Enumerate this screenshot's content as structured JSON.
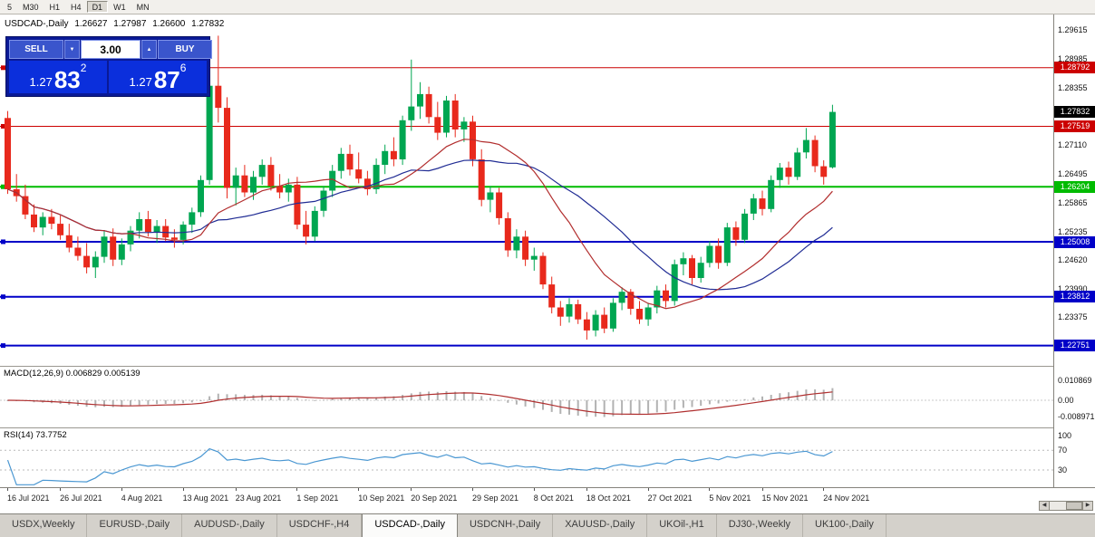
{
  "colors": {
    "bull": "#00a651",
    "bear": "#e8291c",
    "ma_fast": "#b22e2e",
    "ma_slow": "#202c94",
    "level_red": "#cc0000",
    "level_green": "#00bb00",
    "level_blue": "#0000c8",
    "current_badge": "#000000",
    "macd_hist": "#b2b2b2",
    "macd_signal": "#b03030",
    "rsi_line": "#4a97d2",
    "rsi_level": "#b8b8b8"
  },
  "icons": {
    "chevron_down": "▼",
    "chevron_up": "▲",
    "arrow_left": "◀",
    "arrow_right": "▶"
  },
  "toolbar": {
    "timeframes": [
      {
        "label": "5",
        "active": false
      },
      {
        "label": "M30",
        "active": false
      },
      {
        "label": "H1",
        "active": false
      },
      {
        "label": "H4",
        "active": false
      },
      {
        "label": "D1",
        "active": true
      },
      {
        "label": "W1",
        "active": false
      },
      {
        "label": "MN",
        "active": false
      }
    ]
  },
  "trade_panel": {
    "sell_label": "SELL",
    "buy_label": "BUY",
    "volume": "3.00",
    "sell_price": {
      "prefix": "1.27",
      "big": "83",
      "sup": "2"
    },
    "buy_price": {
      "prefix": "1.27",
      "big": "87",
      "sup": "6"
    }
  },
  "chart": {
    "title": "USDCAD-,Daily",
    "ohlc": {
      "open": "1.26627",
      "high": "1.27987",
      "low": "1.26600",
      "close": "1.27832"
    },
    "price_scale": {
      "max": 1.2995,
      "min": 1.2231,
      "ticks": [
        "1.29615",
        "1.28985",
        "1.28355",
        "1.27110",
        "1.26495",
        "1.25865",
        "1.25235",
        "1.24620",
        "1.23990",
        "1.23375"
      ]
    },
    "current_price": {
      "label": "1.27832",
      "value": 1.27832
    },
    "levels": [
      {
        "label": "1.28792",
        "value": 1.28792,
        "color_key": "level_red",
        "width": 1
      },
      {
        "label": "1.27519",
        "value": 1.27519,
        "color_key": "level_red",
        "width": 1
      },
      {
        "label": "1.26204",
        "value": 1.26204,
        "color_key": "level_green",
        "width": 2
      },
      {
        "label": "1.25008",
        "value": 1.25008,
        "color_key": "level_blue",
        "width": 2
      },
      {
        "label": "1.23812",
        "value": 1.23812,
        "color_key": "level_blue",
        "width": 2
      },
      {
        "label": "1.22751",
        "value": 1.22751,
        "color_key": "level_blue",
        "width": 2
      }
    ],
    "ma": {
      "fast_period": 15,
      "slow_period": 24
    },
    "time_ticks": [
      {
        "label": "16 Jul 2021",
        "i": 0
      },
      {
        "label": "26 Jul 2021",
        "i": 6
      },
      {
        "label": "4 Aug 2021",
        "i": 13
      },
      {
        "label": "13 Aug 2021",
        "i": 20
      },
      {
        "label": "23 Aug 2021",
        "i": 26
      },
      {
        "label": "1 Sep 2021",
        "i": 33
      },
      {
        "label": "10 Sep 2021",
        "i": 40
      },
      {
        "label": "20 Sep 2021",
        "i": 46
      },
      {
        "label": "29 Sep 2021",
        "i": 53
      },
      {
        "label": "8 Oct 2021",
        "i": 60
      },
      {
        "label": "18 Oct 2021",
        "i": 66
      },
      {
        "label": "27 Oct 2021",
        "i": 73
      },
      {
        "label": "5 Nov 2021",
        "i": 80
      },
      {
        "label": "15 Nov 2021",
        "i": 86
      },
      {
        "label": "24 Nov 2021",
        "i": 93
      }
    ],
    "candles": [
      [
        1.277,
        1.2785,
        1.2605,
        1.2615
      ],
      [
        1.2615,
        1.2648,
        1.2588,
        1.26
      ],
      [
        1.26,
        1.2625,
        1.255,
        1.256
      ],
      [
        1.256,
        1.2582,
        1.2522,
        1.2532
      ],
      [
        1.2532,
        1.2565,
        1.2515,
        1.2555
      ],
      [
        1.2555,
        1.2572,
        1.2528,
        1.254
      ],
      [
        1.254,
        1.2558,
        1.2505,
        1.2515
      ],
      [
        1.2515,
        1.254,
        1.2478,
        1.2488
      ],
      [
        1.2488,
        1.2512,
        1.246,
        1.247
      ],
      [
        1.247,
        1.2498,
        1.2432,
        1.2445
      ],
      [
        1.2445,
        1.248,
        1.2422,
        1.2468
      ],
      [
        1.2468,
        1.2525,
        1.2455,
        1.2512
      ],
      [
        1.2512,
        1.253,
        1.2448,
        1.2462
      ],
      [
        1.2462,
        1.2508,
        1.245,
        1.2495
      ],
      [
        1.2495,
        1.2535,
        1.248,
        1.2525
      ],
      [
        1.2525,
        1.2565,
        1.2508,
        1.255
      ],
      [
        1.255,
        1.2568,
        1.2512,
        1.2522
      ],
      [
        1.2522,
        1.2548,
        1.2498,
        1.2535
      ],
      [
        1.2535,
        1.255,
        1.2502,
        1.251
      ],
      [
        1.251,
        1.2528,
        1.2488,
        1.2505
      ],
      [
        1.2505,
        1.2545,
        1.2495,
        1.2538
      ],
      [
        1.2538,
        1.2575,
        1.252,
        1.2565
      ],
      [
        1.2565,
        1.2645,
        1.2555,
        1.2635
      ],
      [
        1.2635,
        1.2852,
        1.2625,
        1.284
      ],
      [
        1.284,
        1.2949,
        1.276,
        1.2792
      ],
      [
        1.2792,
        1.2815,
        1.2595,
        1.2618
      ],
      [
        1.2618,
        1.2662,
        1.258,
        1.2645
      ],
      [
        1.2645,
        1.2668,
        1.2598,
        1.2608
      ],
      [
        1.2608,
        1.2655,
        1.2592,
        1.2642
      ],
      [
        1.2642,
        1.268,
        1.2625,
        1.2668
      ],
      [
        1.2668,
        1.2685,
        1.2612,
        1.2622
      ],
      [
        1.2622,
        1.2648,
        1.2595,
        1.2608
      ],
      [
        1.2608,
        1.2638,
        1.2588,
        1.2625
      ],
      [
        1.2625,
        1.2642,
        1.2528,
        1.2538
      ],
      [
        1.2538,
        1.2568,
        1.2495,
        1.2512
      ],
      [
        1.2512,
        1.2578,
        1.2502,
        1.2568
      ],
      [
        1.2568,
        1.2622,
        1.2555,
        1.2612
      ],
      [
        1.2612,
        1.2668,
        1.2598,
        1.2655
      ],
      [
        1.2655,
        1.2705,
        1.2638,
        1.2692
      ],
      [
        1.2692,
        1.2712,
        1.2645,
        1.2658
      ],
      [
        1.2658,
        1.2695,
        1.2628,
        1.2638
      ],
      [
        1.2638,
        1.2655,
        1.2602,
        1.2615
      ],
      [
        1.2615,
        1.2682,
        1.2605,
        1.2668
      ],
      [
        1.2668,
        1.2712,
        1.2648,
        1.2698
      ],
      [
        1.2698,
        1.2728,
        1.2665,
        1.268
      ],
      [
        1.268,
        1.2775,
        1.2668,
        1.2765
      ],
      [
        1.2765,
        1.2897,
        1.2742,
        1.2795
      ],
      [
        1.2795,
        1.2848,
        1.2768,
        1.2822
      ],
      [
        1.2822,
        1.2838,
        1.2758,
        1.2772
      ],
      [
        1.2772,
        1.2805,
        1.2722,
        1.2738
      ],
      [
        1.2738,
        1.2818,
        1.2728,
        1.2808
      ],
      [
        1.2808,
        1.2822,
        1.2728,
        1.2745
      ],
      [
        1.2745,
        1.2772,
        1.2718,
        1.2762
      ],
      [
        1.2762,
        1.2775,
        1.2665,
        1.268
      ],
      [
        1.268,
        1.2702,
        1.2578,
        1.2592
      ],
      [
        1.2592,
        1.2622,
        1.2565,
        1.2608
      ],
      [
        1.2608,
        1.2618,
        1.2538,
        1.2552
      ],
      [
        1.2552,
        1.2565,
        1.2468,
        1.2482
      ],
      [
        1.2482,
        1.2528,
        1.2465,
        1.2512
      ],
      [
        1.2512,
        1.2525,
        1.2448,
        1.2462
      ],
      [
        1.2462,
        1.2488,
        1.2438,
        1.247
      ],
      [
        1.247,
        1.2478,
        1.2398,
        1.2408
      ],
      [
        1.2408,
        1.2425,
        1.2345,
        1.2358
      ],
      [
        1.2358,
        1.2372,
        1.2318,
        1.2338
      ],
      [
        1.2338,
        1.2378,
        1.2325,
        1.2365
      ],
      [
        1.2365,
        1.2375,
        1.2322,
        1.2332
      ],
      [
        1.2332,
        1.2348,
        1.2288,
        1.2308
      ],
      [
        1.2308,
        1.2352,
        1.2295,
        1.2342
      ],
      [
        1.2342,
        1.2358,
        1.2302,
        1.2312
      ],
      [
        1.2312,
        1.2378,
        1.2305,
        1.2368
      ],
      [
        1.2368,
        1.2402,
        1.2352,
        1.2392
      ],
      [
        1.2392,
        1.2398,
        1.2342,
        1.2355
      ],
      [
        1.2355,
        1.2372,
        1.2322,
        1.2332
      ],
      [
        1.2332,
        1.2368,
        1.2318,
        1.2358
      ],
      [
        1.2358,
        1.2405,
        1.2345,
        1.2395
      ],
      [
        1.2395,
        1.2408,
        1.2358,
        1.2372
      ],
      [
        1.2372,
        1.2462,
        1.2362,
        1.2452
      ],
      [
        1.2452,
        1.2478,
        1.2428,
        1.2465
      ],
      [
        1.2465,
        1.2472,
        1.2408,
        1.2422
      ],
      [
        1.2422,
        1.2468,
        1.2412,
        1.2455
      ],
      [
        1.2455,
        1.2502,
        1.2445,
        1.2492
      ],
      [
        1.2492,
        1.2508,
        1.2442,
        1.2455
      ],
      [
        1.2455,
        1.2542,
        1.2448,
        1.2532
      ],
      [
        1.2532,
        1.2545,
        1.2492,
        1.2505
      ],
      [
        1.2505,
        1.2572,
        1.2498,
        1.2562
      ],
      [
        1.2562,
        1.2605,
        1.2548,
        1.2595
      ],
      [
        1.2595,
        1.2612,
        1.2558,
        1.2572
      ],
      [
        1.2572,
        1.2645,
        1.2565,
        1.2635
      ],
      [
        1.2635,
        1.2672,
        1.2618,
        1.2662
      ],
      [
        1.2662,
        1.2675,
        1.2625,
        1.2642
      ],
      [
        1.2642,
        1.2705,
        1.2635,
        1.2695
      ],
      [
        1.2695,
        1.2748,
        1.2682,
        1.2722
      ],
      [
        1.2722,
        1.2732,
        1.2652,
        1.2665
      ],
      [
        1.2665,
        1.2678,
        1.2625,
        1.2642
      ],
      [
        1.26627,
        1.27987,
        1.266,
        1.27832
      ]
    ]
  },
  "macd": {
    "name": "MACD(12,26,9)",
    "values": "0.006829 0.005139",
    "fast": 12,
    "slow": 26,
    "signal": 9,
    "scale": {
      "max": 0.0183,
      "min": -0.0148
    },
    "ticks": [
      "0.010869",
      "0.00",
      "-0.008971"
    ]
  },
  "rsi": {
    "name": "RSI(14)",
    "value": "73.7752",
    "period": 14,
    "ticks": [
      "100",
      "70",
      "30"
    ],
    "levels": [
      70,
      30
    ]
  },
  "tabs": [
    {
      "label": "USDX,Weekly",
      "active": false
    },
    {
      "label": "EURUSD-,Daily",
      "active": false
    },
    {
      "label": "AUDUSD-,Daily",
      "active": false
    },
    {
      "label": "USDCHF-,H4",
      "active": false
    },
    {
      "label": "USDCAD-,Daily",
      "active": true
    },
    {
      "label": "USDCNH-,Daily",
      "active": false
    },
    {
      "label": "XAUUSD-,Daily",
      "active": false
    },
    {
      "label": "UKOil-,H1",
      "active": false
    },
    {
      "label": "DJ30-,Weekly",
      "active": false
    },
    {
      "label": "UK100-,Daily",
      "active": false
    }
  ]
}
